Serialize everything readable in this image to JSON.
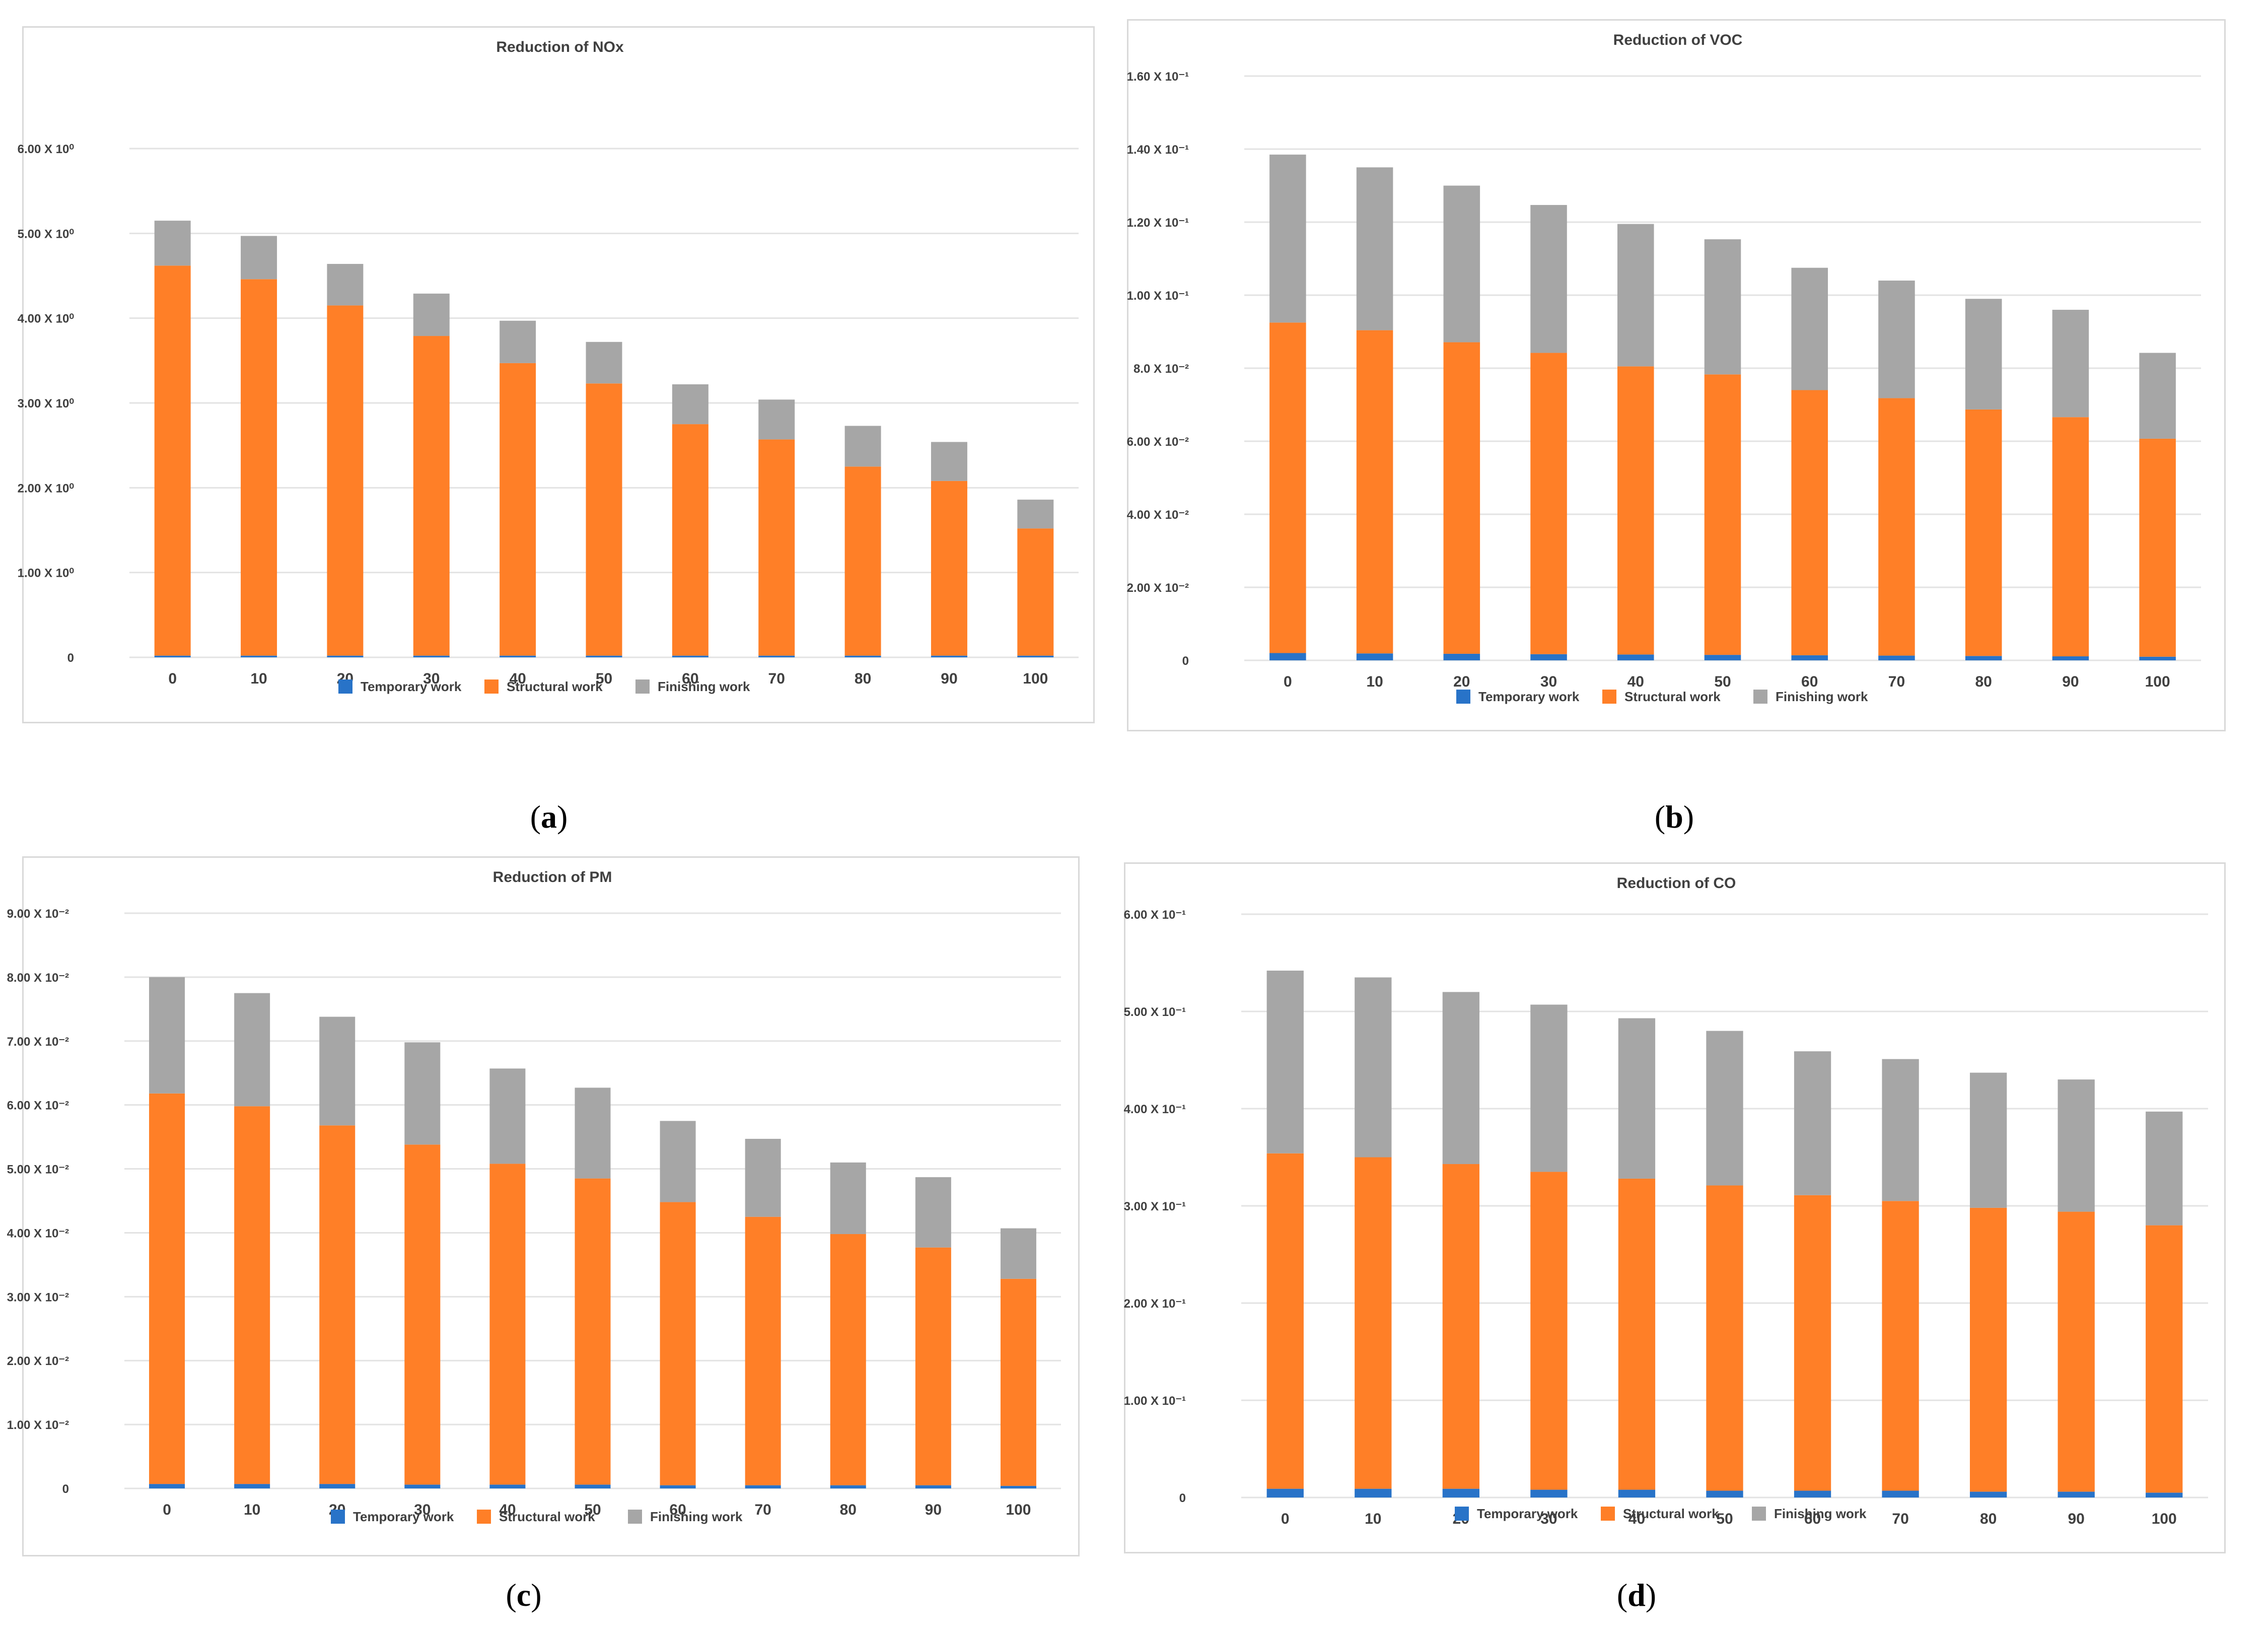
{
  "colors": {
    "temporary": "#2873c8",
    "structural": "#ff7f27",
    "finishing": "#a6a6a6",
    "grid": "#e3e3e3",
    "text": "#404040"
  },
  "legend": [
    "Temporary work",
    "Structural work",
    "Finishing work"
  ],
  "captions": [
    "a",
    "b",
    "c",
    "d"
  ],
  "chart_data": [
    {
      "type": "bar",
      "stacked": true,
      "title": "Reduction of NOx",
      "categories": [
        "0",
        "10",
        "20",
        "30",
        "40",
        "50",
        "60",
        "70",
        "80",
        "90",
        "100"
      ],
      "ylim": [
        0,
        6.0
      ],
      "yticks": [
        0,
        1.0,
        2.0,
        3.0,
        4.0,
        5.0,
        6.0
      ],
      "ytick_labels": [
        "0",
        "1.00 X 10⁰",
        "2.00 X 10⁰",
        "3.00 X 10⁰",
        "4.00 X 10⁰",
        "5.00 X 10⁰",
        "6.00 X 10⁰"
      ],
      "grid": true,
      "legend_position": "bottom",
      "series": [
        {
          "name": "Temporary work",
          "values": [
            0.02,
            0.02,
            0.02,
            0.02,
            0.02,
            0.02,
            0.02,
            0.02,
            0.02,
            0.02,
            0.02
          ]
        },
        {
          "name": "Structural work",
          "values": [
            4.6,
            4.44,
            4.13,
            3.77,
            3.45,
            3.21,
            2.73,
            2.55,
            2.23,
            2.06,
            1.5
          ]
        },
        {
          "name": "Finishing work",
          "values": [
            0.53,
            0.51,
            0.49,
            0.5,
            0.5,
            0.49,
            0.47,
            0.47,
            0.48,
            0.46,
            0.34
          ]
        }
      ]
    },
    {
      "type": "bar",
      "stacked": true,
      "title": "Reduction of VOC",
      "categories": [
        "0",
        "10",
        "20",
        "30",
        "40",
        "50",
        "60",
        "70",
        "80",
        "90",
        "100"
      ],
      "ylim": [
        0,
        0.16
      ],
      "yticks": [
        0,
        0.02,
        0.04,
        0.06,
        0.08,
        0.1,
        0.12,
        0.14,
        0.16
      ],
      "ytick_labels": [
        "0",
        "2.00 X 10⁻²",
        "4.00 X 10⁻²",
        "6.00 X 10⁻²",
        "8.0 X 10⁻²",
        "1.00 X 10⁻¹",
        "1.20 X 10⁻¹",
        "1.40 X 10⁻¹",
        "1.60 X 10⁻¹"
      ],
      "grid": true,
      "legend_position": "bottom",
      "series": [
        {
          "name": "Temporary work",
          "values": [
            0.002,
            0.0019,
            0.0018,
            0.0017,
            0.0016,
            0.0015,
            0.0014,
            0.0013,
            0.0012,
            0.0011,
            0.001
          ]
        },
        {
          "name": "Structural work",
          "values": [
            0.0905,
            0.0885,
            0.0853,
            0.0825,
            0.0789,
            0.0768,
            0.0726,
            0.0705,
            0.0675,
            0.0655,
            0.0597
          ]
        },
        {
          "name": "Finishing work",
          "values": [
            0.046,
            0.0446,
            0.0429,
            0.0405,
            0.039,
            0.037,
            0.0335,
            0.0322,
            0.0303,
            0.0294,
            0.0235
          ]
        }
      ]
    },
    {
      "type": "bar",
      "stacked": true,
      "title": "Reduction of PM",
      "categories": [
        "0",
        "10",
        "20",
        "30",
        "40",
        "50",
        "60",
        "70",
        "80",
        "90",
        "100"
      ],
      "ylim": [
        0,
        0.09
      ],
      "yticks": [
        0,
        0.01,
        0.02,
        0.03,
        0.04,
        0.05,
        0.06,
        0.07,
        0.08,
        0.09
      ],
      "ytick_labels": [
        "0",
        "1.00 X 10⁻²",
        "2.00 X 10⁻²",
        "3.00 X 10⁻²",
        "4.00 X 10⁻²",
        "5.00 X 10⁻²",
        "6.00 X 10⁻²",
        "7.00 X 10⁻²",
        "8.00 X 10⁻²",
        "9.00 X 10⁻²"
      ],
      "grid": true,
      "legend_position": "bottom",
      "series": [
        {
          "name": "Temporary work",
          "values": [
            0.0007,
            0.0007,
            0.0007,
            0.0006,
            0.0006,
            0.0006,
            0.0005,
            0.0005,
            0.0005,
            0.0005,
            0.0004
          ]
        },
        {
          "name": "Structural work",
          "values": [
            0.0611,
            0.0591,
            0.0561,
            0.0532,
            0.0502,
            0.0479,
            0.0443,
            0.042,
            0.0393,
            0.0372,
            0.0324
          ]
        },
        {
          "name": "Finishing work",
          "values": [
            0.0182,
            0.0177,
            0.017,
            0.016,
            0.0149,
            0.0142,
            0.0127,
            0.0122,
            0.0112,
            0.011,
            0.0079
          ]
        }
      ]
    },
    {
      "type": "bar",
      "stacked": true,
      "title": "Reduction of CO",
      "categories": [
        "0",
        "10",
        "20",
        "30",
        "40",
        "50",
        "60",
        "70",
        "80",
        "90",
        "100"
      ],
      "ylim": [
        0,
        0.6
      ],
      "yticks": [
        0,
        0.1,
        0.2,
        0.3,
        0.4,
        0.5,
        0.6
      ],
      "ytick_labels": [
        "0",
        "1.00 X 10⁻¹",
        "2.00 X 10⁻¹",
        "3.00 X 10⁻¹",
        "4.00 X 10⁻¹",
        "5.00 X 10⁻¹",
        "6.00 X 10⁻¹"
      ],
      "grid": true,
      "legend_position": "bottom",
      "series": [
        {
          "name": "Temporary work",
          "values": [
            0.009,
            0.009,
            0.009,
            0.008,
            0.008,
            0.007,
            0.007,
            0.007,
            0.006,
            0.006,
            0.005
          ]
        },
        {
          "name": "Structural work",
          "values": [
            0.345,
            0.341,
            0.334,
            0.327,
            0.32,
            0.314,
            0.304,
            0.298,
            0.292,
            0.288,
            0.275
          ]
        },
        {
          "name": "Finishing work",
          "values": [
            0.188,
            0.185,
            0.177,
            0.172,
            0.165,
            0.159,
            0.148,
            0.146,
            0.139,
            0.136,
            0.117
          ]
        }
      ]
    }
  ]
}
